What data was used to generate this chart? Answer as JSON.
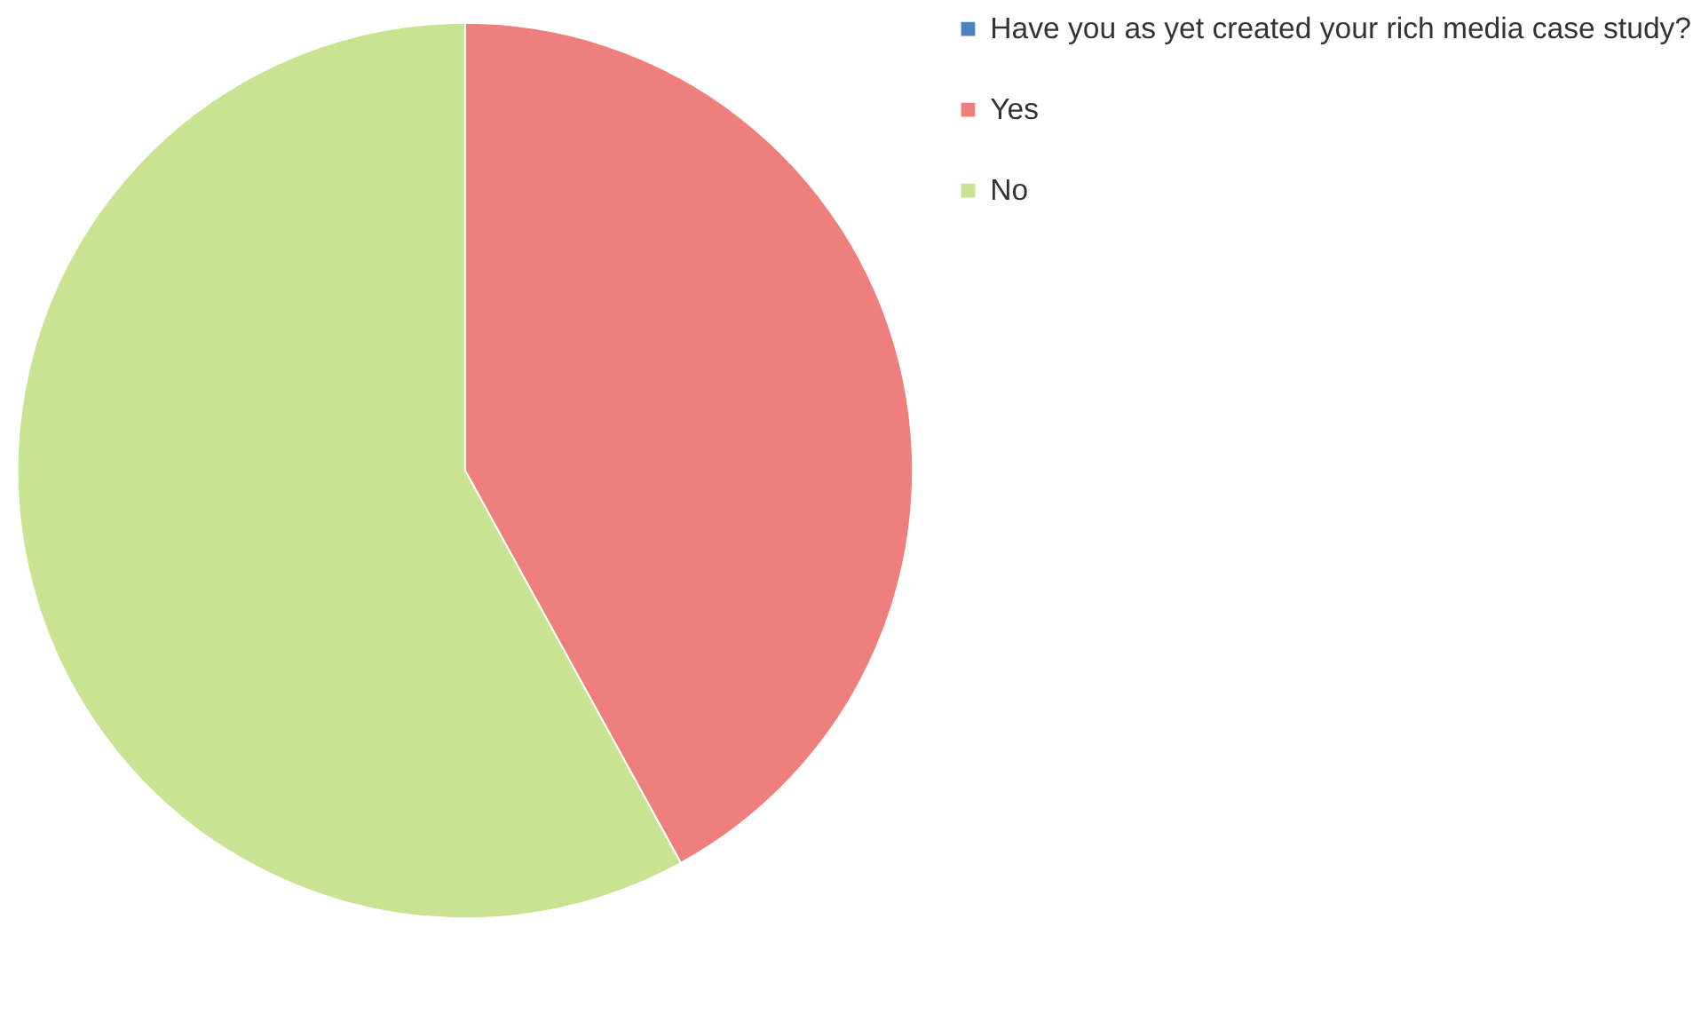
{
  "chart_data": {
    "type": "pie",
    "categories": [
      "Have you as yet created your rich media case study?",
      "Yes",
      "No"
    ],
    "values": [
      0,
      42,
      58
    ],
    "colors": [
      "#4f81bd",
      "#ee7f7c",
      "#c8e391"
    ],
    "legend": "right"
  }
}
